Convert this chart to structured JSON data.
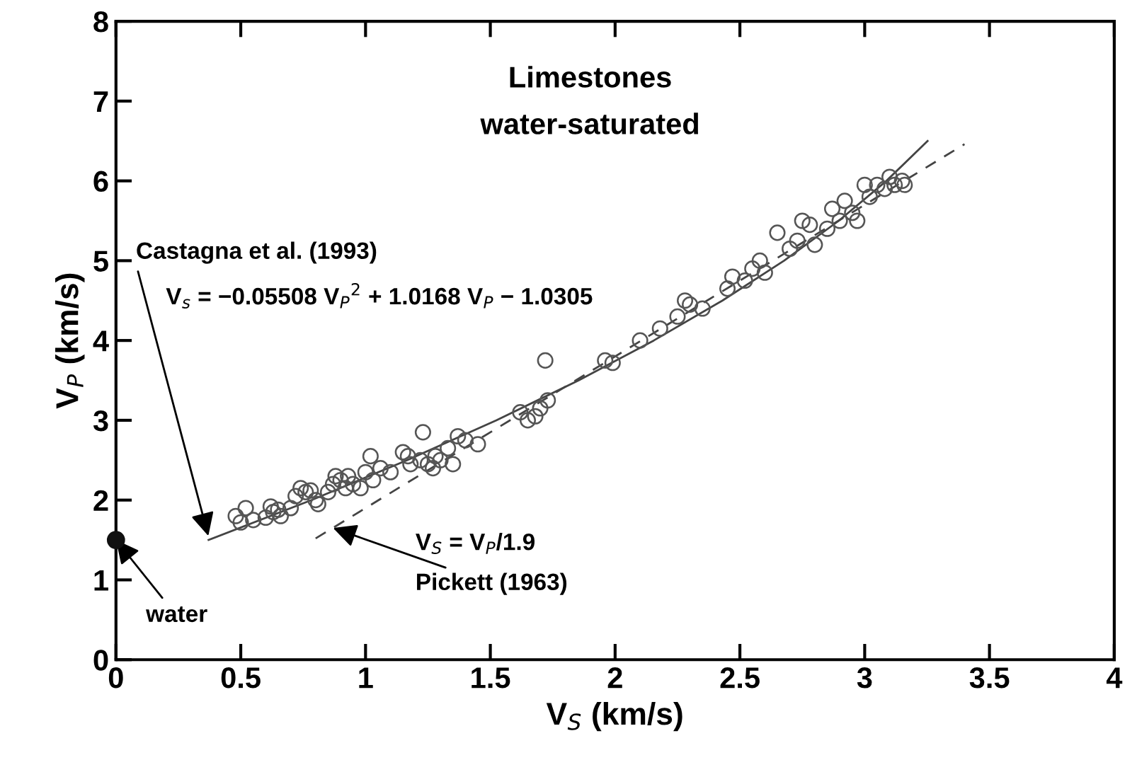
{
  "chart_data": {
    "type": "scatter",
    "title": "Limestones\nwater-saturated",
    "xlabel": "V$_{S}$ (km/s)",
    "ylabel": "V$_{P}$ (km/s)",
    "xlim": [
      0,
      4
    ],
    "ylim": [
      0,
      8
    ],
    "xticks": [
      0,
      0.5,
      1,
      1.5,
      2,
      2.5,
      3,
      3.5,
      4
    ],
    "yticks": [
      0,
      1,
      2,
      3,
      4,
      5,
      6,
      7,
      8
    ],
    "grid": false,
    "legend": false,
    "series": [
      {
        "marker": "circle",
        "color": "#555555",
        "x": [
          0.48,
          0.52,
          0.5,
          0.55,
          0.6,
          0.62,
          0.63,
          0.65,
          0.66,
          0.7,
          0.72,
          0.74,
          0.76,
          0.78,
          0.8,
          0.81,
          0.85,
          0.87,
          0.88,
          0.9,
          0.92,
          0.93,
          0.95,
          0.98,
          1.0,
          1.02,
          1.03,
          1.06,
          1.1,
          1.15,
          1.17,
          1.18,
          1.22,
          1.23,
          1.25,
          1.27,
          1.28,
          1.3,
          1.33,
          1.35,
          1.37,
          1.4,
          1.45,
          1.62,
          1.65,
          1.68,
          1.7,
          1.72,
          1.73,
          1.96,
          1.99,
          2.1,
          2.18,
          2.25,
          2.28,
          2.3,
          2.35,
          2.45,
          2.47,
          2.52,
          2.55,
          2.58,
          2.6,
          2.65,
          2.7,
          2.73,
          2.75,
          2.78,
          2.8,
          2.85,
          2.87,
          2.9,
          2.92,
          2.95,
          2.97,
          3.0,
          3.02,
          3.05,
          3.08,
          3.1,
          3.12,
          3.15,
          3.16
        ],
        "values": [
          1.8,
          1.9,
          1.72,
          1.75,
          1.78,
          1.92,
          1.85,
          1.88,
          1.8,
          1.9,
          2.05,
          2.15,
          2.1,
          2.12,
          2.0,
          1.95,
          2.1,
          2.2,
          2.3,
          2.25,
          2.15,
          2.3,
          2.2,
          2.15,
          2.35,
          2.55,
          2.25,
          2.4,
          2.35,
          2.6,
          2.55,
          2.45,
          2.5,
          2.85,
          2.45,
          2.4,
          2.55,
          2.5,
          2.65,
          2.45,
          2.8,
          2.75,
          2.7,
          3.1,
          3.0,
          3.05,
          3.15,
          3.75,
          3.25,
          3.75,
          3.72,
          4.0,
          4.15,
          4.3,
          4.5,
          4.45,
          4.4,
          4.65,
          4.8,
          4.75,
          4.9,
          5.0,
          4.85,
          5.35,
          5.15,
          5.25,
          5.5,
          5.45,
          5.2,
          5.4,
          5.65,
          5.5,
          5.75,
          5.6,
          5.5,
          5.95,
          5.8,
          5.95,
          5.9,
          6.05,
          5.95,
          6.0,
          5.95
        ]
      },
      {
        "marker": "circle",
        "color": "#111111",
        "x": [
          0
        ],
        "values": [
          1.5
        ]
      },
      {
        "type": "line",
        "marker": "none",
        "line_style": "solid",
        "color": "#444444",
        "x": [
          0.371,
          0.783,
          1.167,
          1.524,
          1.854,
          2.155,
          2.43,
          2.677,
          2.896,
          3.087,
          3.252
        ],
        "values": [
          1.5,
          2,
          2.5,
          3,
          3.5,
          4,
          4.5,
          5,
          5.5,
          6,
          6.5
        ]
      },
      {
        "type": "line",
        "marker": "none",
        "line_style": "dashed",
        "color": "#444444",
        "x": [
          0.8,
          3.4
        ],
        "values": [
          1.52,
          6.46
        ]
      }
    ],
    "annotations": [
      {
        "text": "water",
        "x": 0,
        "y": 1.5
      },
      {
        "text": "Castagna et al. (1993)",
        "x": 0.37,
        "y": 1.55
      },
      "V$_{s}$ = −0.05508 V$_{P}$$^{2}$ + 1.0168 V$_{P}$ − 1.0305",
      {
        "text": "Pickett (1963)",
        "x": 0.87,
        "y": 1.65
      },
      "V$_{S}$ = V$_{P}$/1.9"
    ]
  }
}
